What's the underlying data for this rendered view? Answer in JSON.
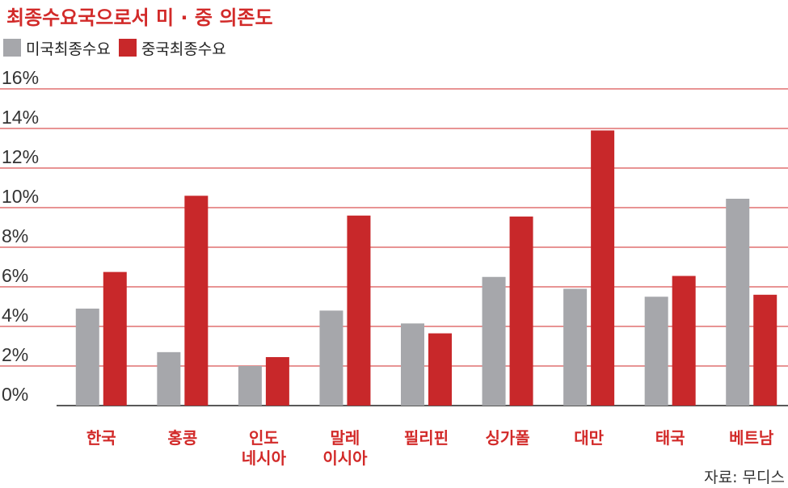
{
  "chart_data": {
    "type": "bar",
    "title": "최종수요국으로서 미 · 중 의존도",
    "categories": [
      [
        "한국"
      ],
      [
        "홍콩"
      ],
      [
        "인도",
        "네시아"
      ],
      [
        "말레",
        "이시아"
      ],
      [
        "필리핀"
      ],
      [
        "싱가폴"
      ],
      [
        "대만"
      ],
      [
        "태국"
      ],
      [
        "베트남"
      ]
    ],
    "series": [
      {
        "name": "미국최종수요",
        "color": "#a6a7ab",
        "values": [
          4.9,
          2.7,
          2.0,
          4.8,
          4.15,
          6.5,
          5.9,
          5.5,
          10.45
        ]
      },
      {
        "name": "중국최종수요",
        "color": "#c8282a",
        "values": [
          6.75,
          10.6,
          2.45,
          9.6,
          3.65,
          9.55,
          13.9,
          6.55,
          5.6
        ]
      }
    ],
    "y_ticks": [
      "0%",
      "2%",
      "4%",
      "6%",
      "8%",
      "10%",
      "12%",
      "14%",
      "16%"
    ],
    "ylim": [
      0,
      16
    ],
    "grid": true,
    "legend_position": "top-left"
  },
  "source": "자료: 무디스",
  "colors": {
    "accent": "#d22a29",
    "grid": "#d22a29",
    "axis": "#222222"
  }
}
